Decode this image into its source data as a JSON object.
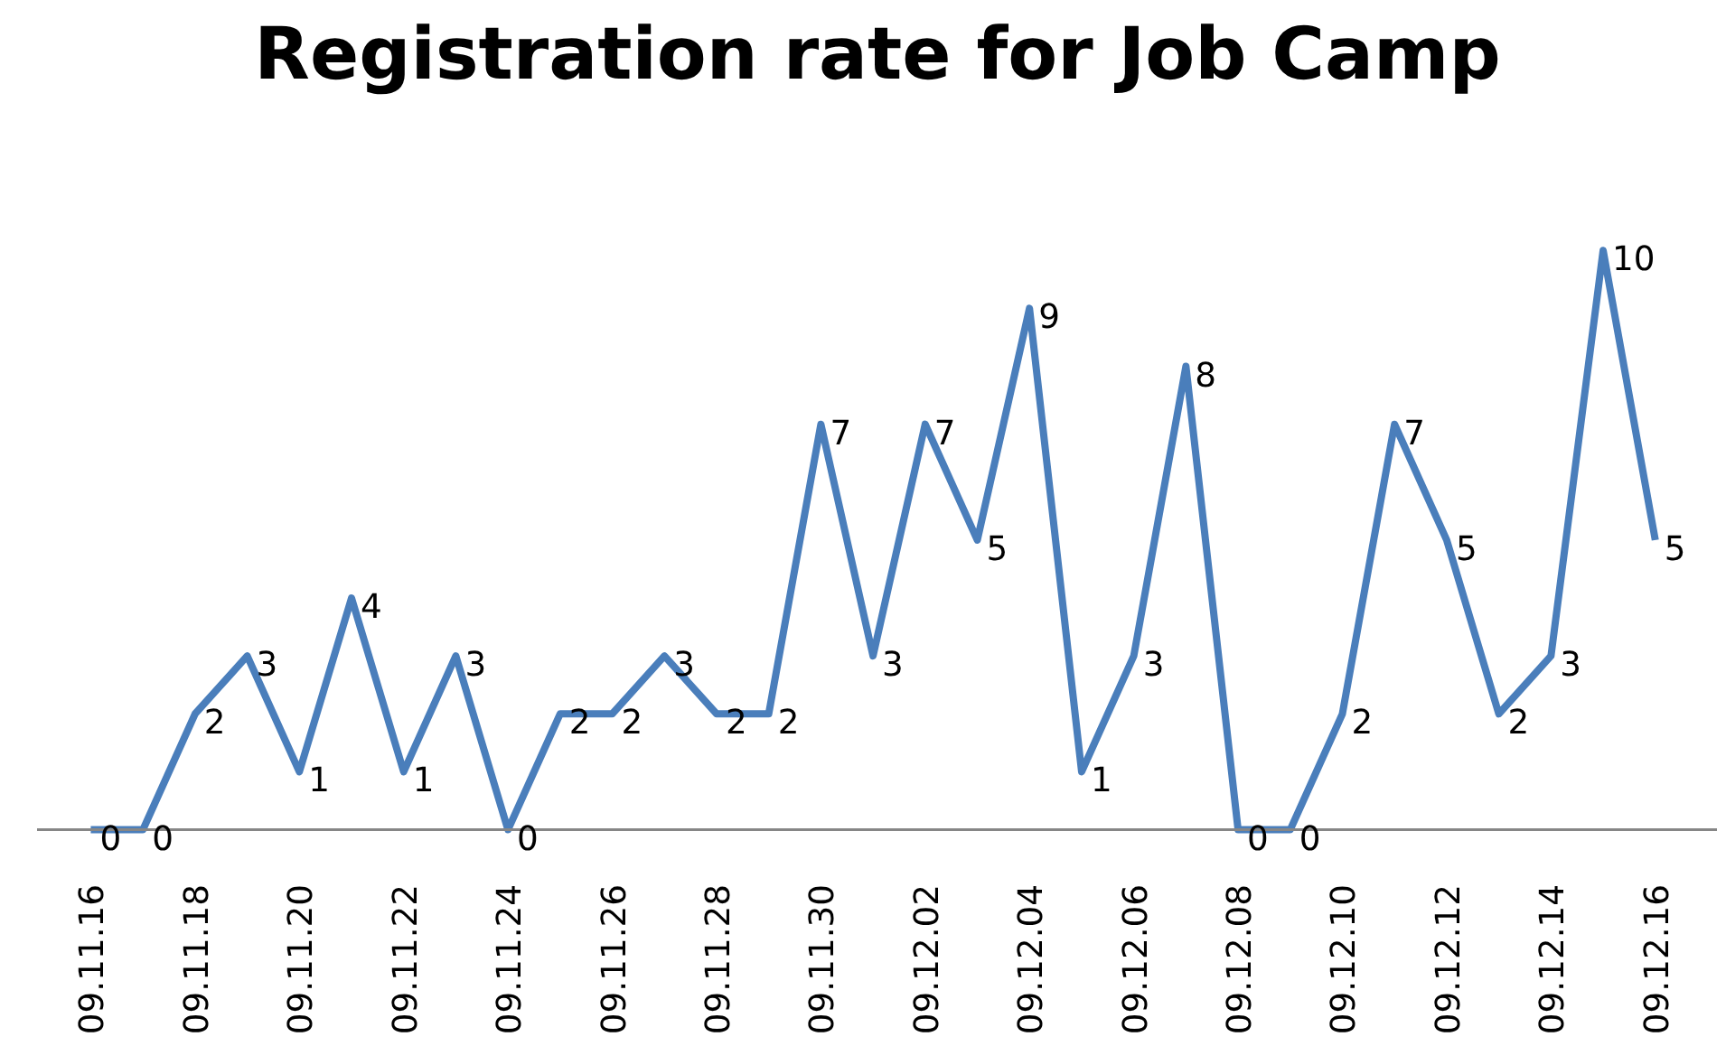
{
  "chart_data": {
    "type": "line",
    "title": "Registration rate for Job Camp",
    "categories": [
      "09.11.16",
      null,
      "09.11.18",
      null,
      "09.11.20",
      null,
      "09.11.22",
      null,
      "09.11.24",
      null,
      "09.11.26",
      null,
      "09.11.28",
      null,
      "09.11.30",
      null,
      "09.12.02",
      null,
      "09.12.04",
      null,
      "09.12.06",
      null,
      "09.12.08",
      null,
      "09.12.10",
      null,
      "09.12.12",
      null,
      "09.12.14",
      null,
      "09.12.16"
    ],
    "series": [
      {
        "color": "#4a7ebb",
        "values": [
          0,
          0,
          2,
          3,
          1,
          4,
          1,
          3,
          0,
          2,
          2,
          3,
          2,
          2,
          7,
          3,
          7,
          5,
          9,
          1,
          3,
          8,
          0,
          0,
          2,
          7,
          5,
          2,
          3,
          10,
          5
        ]
      }
    ],
    "data_labels": true,
    "grid": false,
    "marker": "none",
    "line_style": "solid"
  }
}
